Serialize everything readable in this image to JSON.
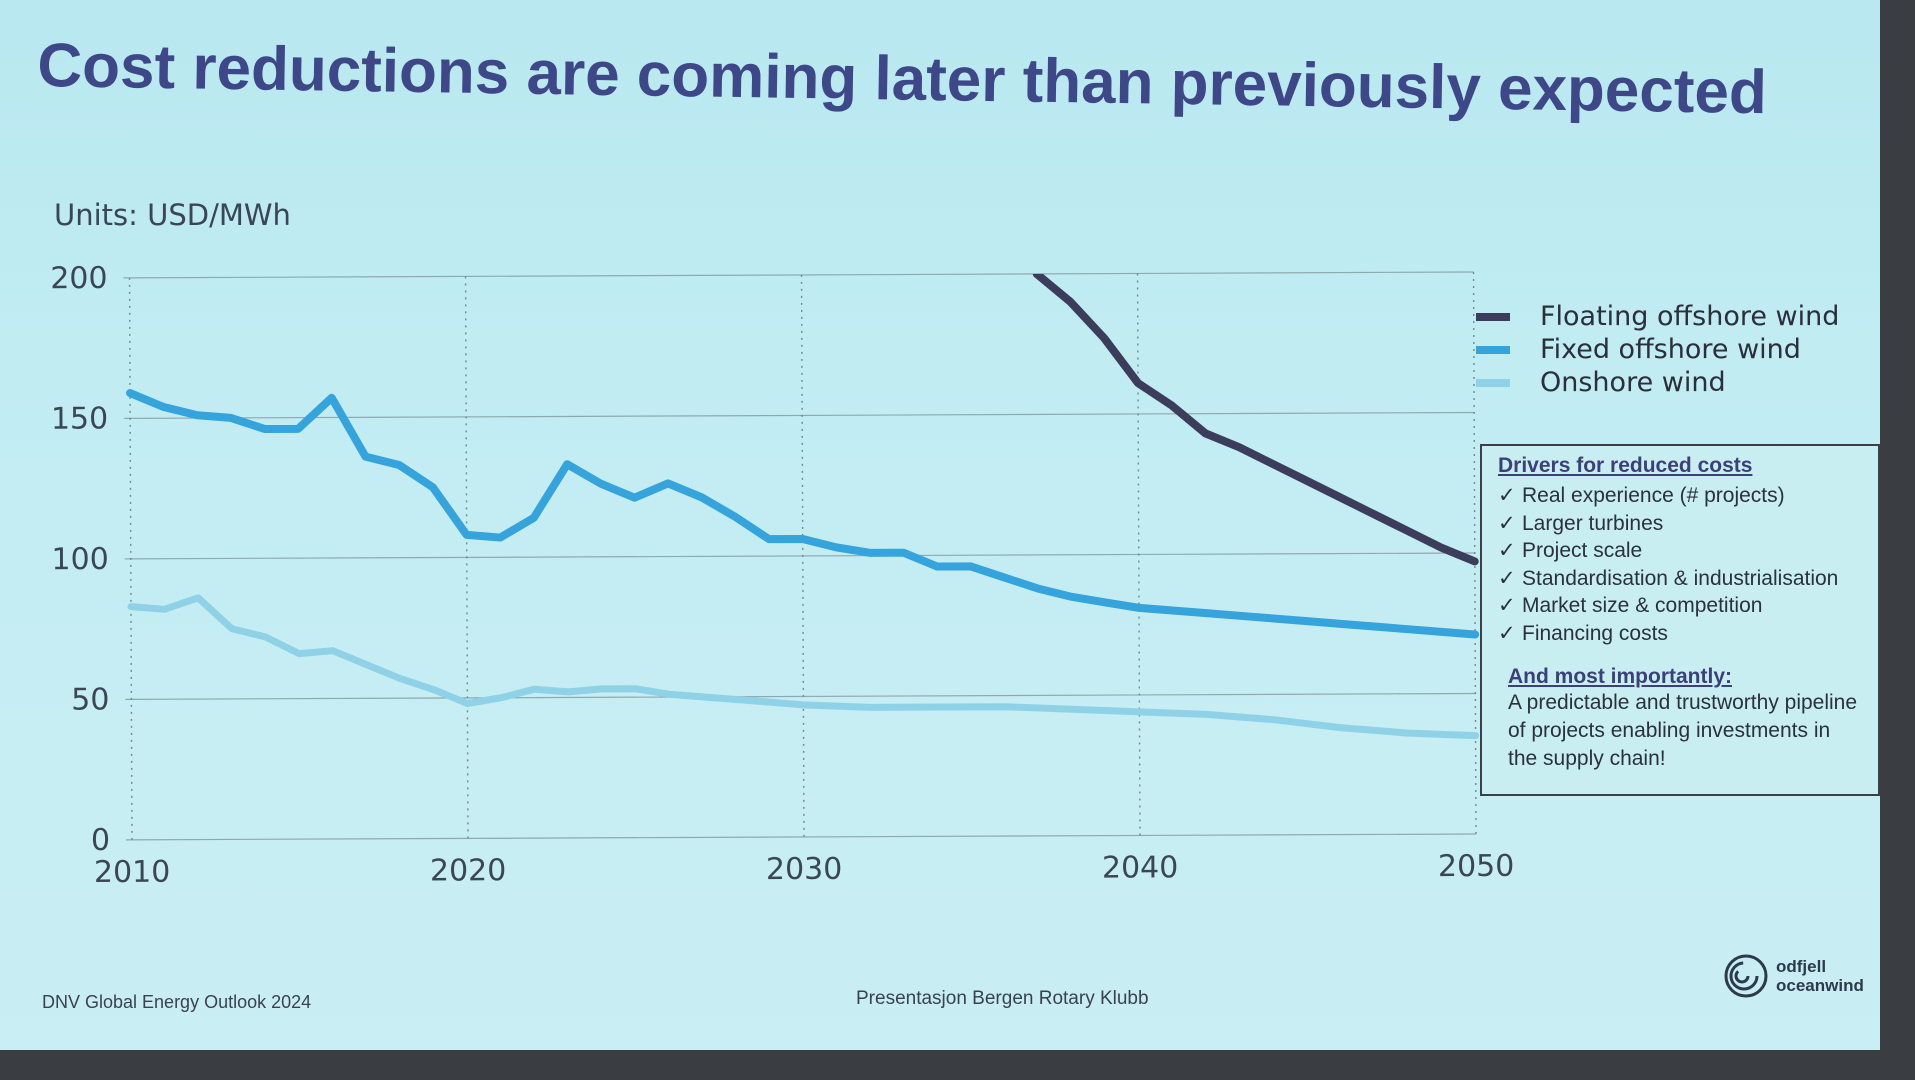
{
  "title": "Cost reductions are coming later than previously expected",
  "units_label": "Units: USD/MWh",
  "colors": {
    "floating": "#3b3d5a",
    "fixed": "#35a3dc",
    "onshore": "#8fd2e8",
    "title": "#3e4888"
  },
  "chart_data": {
    "type": "line",
    "title": "Cost reductions are coming later than previously expected",
    "ylabel": "Units: USD/MWh",
    "xlabel": "",
    "xlim": [
      2010,
      2050
    ],
    "ylim": [
      0,
      200
    ],
    "x_ticks": [
      2010,
      2020,
      2030,
      2040,
      2050
    ],
    "y_ticks": [
      0,
      50,
      100,
      150,
      200
    ],
    "series": [
      {
        "name": "Floating offshore wind",
        "color": "#3b3d5a",
        "x": [
          2037,
          2038,
          2039,
          2040,
          2041,
          2042,
          2043,
          2044,
          2045,
          2046,
          2047,
          2048,
          2049,
          2050
        ],
        "y": [
          200,
          190,
          177,
          161,
          153,
          143,
          138,
          132,
          126,
          120,
          114,
          108,
          102,
          97
        ]
      },
      {
        "name": "Fixed offshore wind",
        "color": "#35a3dc",
        "x": [
          2010,
          2011,
          2012,
          2013,
          2014,
          2015,
          2016,
          2017,
          2018,
          2019,
          2020,
          2021,
          2022,
          2023,
          2024,
          2025,
          2026,
          2027,
          2028,
          2029,
          2030,
          2031,
          2032,
          2033,
          2034,
          2035,
          2036,
          2037,
          2038,
          2039,
          2040,
          2041,
          2042,
          2043,
          2044,
          2045,
          2046,
          2047,
          2048,
          2049,
          2050
        ],
        "y": [
          159,
          154,
          151,
          150,
          146,
          146,
          157,
          136,
          133,
          125,
          108,
          107,
          114,
          133,
          126,
          121,
          126,
          121,
          114,
          106,
          106,
          103,
          101,
          101,
          96,
          96,
          92,
          88,
          85,
          83,
          81,
          80,
          79,
          78,
          77,
          76,
          75,
          74,
          73,
          72,
          71
        ]
      },
      {
        "name": "Onshore wind",
        "color": "#8fd2e8",
        "x": [
          2010,
          2011,
          2012,
          2013,
          2014,
          2015,
          2016,
          2017,
          2018,
          2019,
          2020,
          2021,
          2022,
          2023,
          2024,
          2025,
          2026,
          2027,
          2028,
          2029,
          2030,
          2032,
          2034,
          2036,
          2038,
          2040,
          2042,
          2044,
          2046,
          2048,
          2050
        ],
        "y": [
          83,
          82,
          86,
          75,
          72,
          66,
          67,
          62,
          57,
          53,
          48,
          50,
          53,
          52,
          53,
          53,
          51,
          50,
          49,
          48,
          47,
          46,
          46,
          46,
          45,
          44,
          43,
          41,
          38,
          36,
          35
        ]
      }
    ]
  },
  "legend": [
    {
      "label": "Floating offshore wind",
      "color": "#3b3d5a"
    },
    {
      "label": "Fixed offshore wind",
      "color": "#35a3dc"
    },
    {
      "label": "Onshore wind",
      "color": "#8fd2e8"
    }
  ],
  "drivers_box": {
    "title": "Drivers for reduced costs",
    "check": "✓",
    "items": [
      "Real experience (# projects)",
      "Larger turbines",
      "Project scale",
      "Standardisation & industrialisation",
      "Market size & competition",
      "Financing costs"
    ],
    "subtitle": "And most importantly:",
    "note_lines": [
      "A predictable and trustworthy pipeline",
      "of projects enabling investments in",
      "the supply chain!"
    ]
  },
  "footer": {
    "source": "DNV Global Energy Outlook  2024",
    "center": "Presentasjon Bergen Rotary Klubb"
  },
  "logo": {
    "line1": "odfjell",
    "line2": "oceanwind"
  }
}
